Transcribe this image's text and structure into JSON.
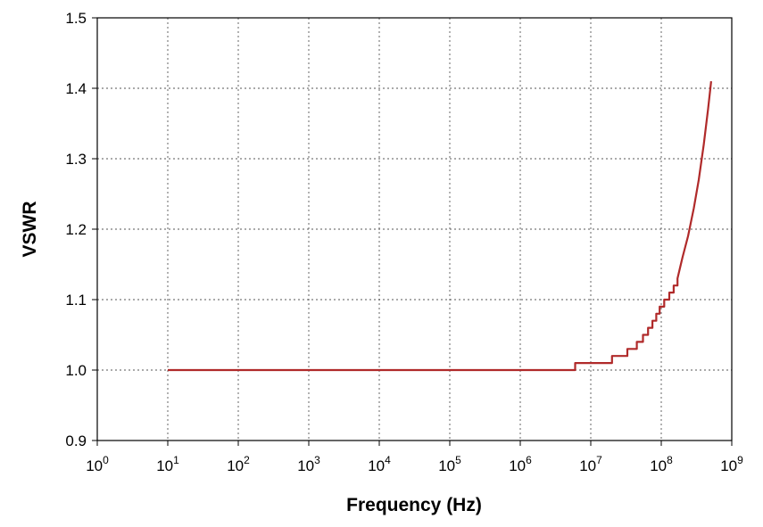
{
  "chart_data": {
    "type": "line",
    "title": "",
    "xlabel": "Frequency (Hz)",
    "ylabel": "VSWR",
    "xscale": "log",
    "xlim": [
      1,
      1000000000
    ],
    "ylim": [
      0.9,
      1.5
    ],
    "grid": true,
    "x_ticks": [
      {
        "base": "10",
        "exp": "0"
      },
      {
        "base": "10",
        "exp": "1"
      },
      {
        "base": "10",
        "exp": "2"
      },
      {
        "base": "10",
        "exp": "3"
      },
      {
        "base": "10",
        "exp": "4"
      },
      {
        "base": "10",
        "exp": "5"
      },
      {
        "base": "10",
        "exp": "6"
      },
      {
        "base": "10",
        "exp": "7"
      },
      {
        "base": "10",
        "exp": "8"
      },
      {
        "base": "10",
        "exp": "9"
      }
    ],
    "y_ticks": [
      "0.9",
      "1.0",
      "1.1",
      "1.2",
      "1.3",
      "1.4",
      "1.5"
    ],
    "series": [
      {
        "color": "#b02a2a",
        "x": [
          10,
          1000,
          6000000,
          6000000,
          20000000,
          20000000,
          33000000,
          33000000,
          45000000,
          45000000,
          55000000,
          55000000,
          65000000,
          65000000,
          75000000,
          75000000,
          85000000,
          85000000,
          95000000,
          95000000,
          110000000,
          110000000,
          130000000,
          130000000,
          150000000,
          150000000,
          170000000,
          170000000,
          200000000,
          240000000,
          290000000,
          340000000,
          400000000,
          460000000,
          510000000
        ],
        "y": [
          1.0,
          1.0,
          1.0,
          1.01,
          1.01,
          1.02,
          1.02,
          1.03,
          1.03,
          1.04,
          1.04,
          1.05,
          1.05,
          1.06,
          1.06,
          1.07,
          1.07,
          1.08,
          1.08,
          1.09,
          1.09,
          1.1,
          1.1,
          1.11,
          1.11,
          1.12,
          1.12,
          1.13,
          1.16,
          1.19,
          1.23,
          1.27,
          1.32,
          1.37,
          1.41
        ]
      }
    ]
  }
}
